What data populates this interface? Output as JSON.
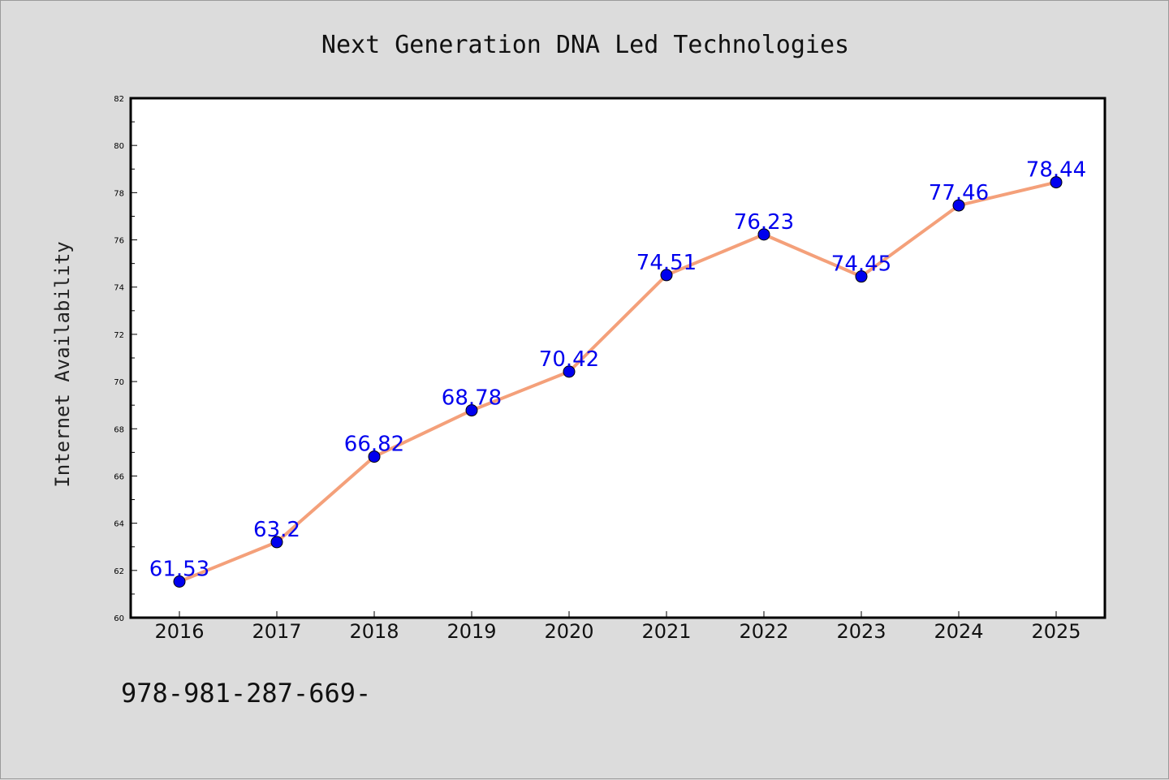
{
  "chart_data": {
    "type": "line",
    "title": "Next Generation DNA Led Technologies",
    "xlabel": "",
    "ylabel": "Internet Availability",
    "categories": [
      "2016",
      "2017",
      "2018",
      "2019",
      "2020",
      "2021",
      "2022",
      "2023",
      "2024",
      "2025"
    ],
    "series": [
      {
        "values": [
          61.53,
          63.2,
          66.82,
          68.78,
          70.42,
          74.51,
          76.23,
          74.45,
          77.46,
          78.44
        ],
        "labels": [
          "61.53",
          "63.2",
          "66.82",
          "68.78",
          "70.42",
          "74.51",
          "76.23",
          "74.45",
          "77.46",
          "78.44"
        ],
        "line_color": "#f4a07a",
        "marker_color": "#0000ee"
      }
    ],
    "ylim": [
      60,
      82
    ],
    "yticks": [
      "60",
      "62",
      "64",
      "66",
      "68",
      "70",
      "72",
      "74",
      "76",
      "78",
      "80",
      "82"
    ],
    "grid": false,
    "legend": "none"
  },
  "footer": {
    "text": "978-981-287-669-"
  }
}
